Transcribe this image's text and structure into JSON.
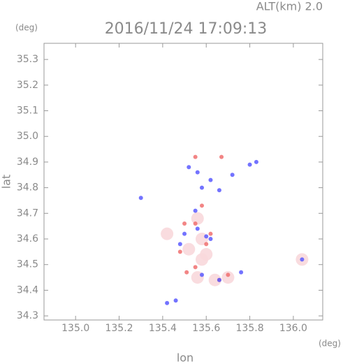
{
  "chart_data": {
    "type": "scatter",
    "title": "2016/11/24 17:09:13",
    "subtitle": "ALT(km) 2.0",
    "y_unit": "(deg)",
    "x_unit": "(deg)",
    "xlabel": "lon",
    "ylabel": "lat",
    "xlim": [
      134.855,
      136.135
    ],
    "ylim": [
      34.284,
      35.363
    ],
    "xticks": [
      {
        "value": 135,
        "label": "135.0"
      },
      135.2,
      135.4,
      135.6,
      135.8,
      {
        "value": 136,
        "label": "136.0"
      }
    ],
    "yticks": [
      34.3,
      34.4,
      34.5,
      34.6,
      34.7,
      34.8,
      34.9,
      {
        "value": 35,
        "label": "35.0"
      },
      35.1,
      35.2,
      35.3
    ],
    "series": [
      {
        "color": "#f8d8dc",
        "x": [
          135.56,
          135.58,
          135.52,
          135.58,
          135.56,
          135.64,
          135.7,
          135.6,
          136.04,
          135.42
        ],
        "values": [
          34.68,
          34.6,
          34.56,
          34.52,
          34.45,
          34.44,
          34.45,
          34.54,
          34.52,
          34.62
        ]
      },
      {
        "color": "#f07070",
        "x": [
          135.55,
          135.67,
          135.58,
          135.55,
          135.5,
          135.62,
          135.48,
          135.55,
          135.66,
          135.7,
          135.6,
          135.51
        ],
        "values": [
          34.92,
          34.92,
          34.73,
          34.66,
          34.66,
          34.62,
          34.55,
          34.49,
          34.44,
          34.46,
          34.58,
          34.47
        ]
      },
      {
        "color": "#5a5aff",
        "x": [
          135.52,
          135.56,
          135.62,
          135.72,
          135.8,
          135.83,
          135.58,
          135.66,
          135.5,
          135.56,
          135.6,
          135.62,
          135.55,
          135.48,
          135.58,
          135.66,
          135.76,
          135.42,
          135.46,
          135.3,
          136.04
        ],
        "values": [
          34.88,
          34.86,
          34.83,
          34.85,
          34.89,
          34.9,
          34.8,
          34.79,
          34.62,
          34.64,
          34.61,
          34.6,
          34.71,
          34.58,
          34.46,
          34.44,
          34.47,
          34.35,
          34.36,
          34.76,
          34.52
        ]
      }
    ]
  }
}
